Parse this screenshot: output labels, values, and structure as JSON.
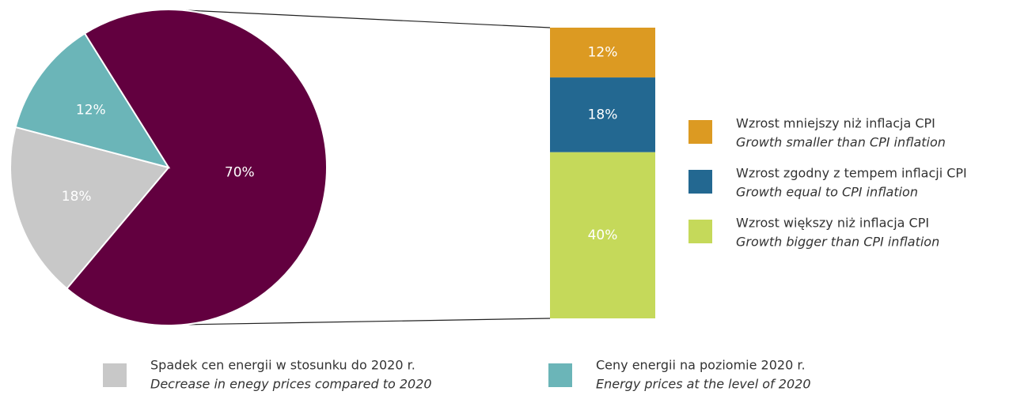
{
  "chart_data": {
    "type": "pie",
    "categories": [
      null,
      "Spadek cen energii w stosunku do 2020 r.",
      "Ceny energii na poziomie 2020 r."
    ],
    "categories_en": [
      null,
      "Decrease in enegy prices compared to 2020",
      "Energy prices at the level of 2020"
    ],
    "values": [
      70,
      18,
      12
    ],
    "value_labels": [
      "70%",
      "18%",
      "12%"
    ],
    "colors": [
      "#62003f",
      "#c8c8c8",
      "#6bb5b8"
    ],
    "breakdown": {
      "type": "bar",
      "categories": [
        "Wzrost mniejszy niż inflacja CPI",
        "Wzrost zgodny z tempem inflacji CPI",
        "Wzrost większy niż inflacja CPI"
      ],
      "categories_en": [
        "Growth smaller than CPI inflation",
        "Growth equal to CPI inflation",
        "Growth bigger than CPI inflation"
      ],
      "values": [
        12,
        18,
        40
      ],
      "value_labels": [
        "12%",
        "18%",
        "40%"
      ],
      "colors": [
        "#dc9a22",
        "#236891",
        "#c5d95a"
      ]
    }
  }
}
